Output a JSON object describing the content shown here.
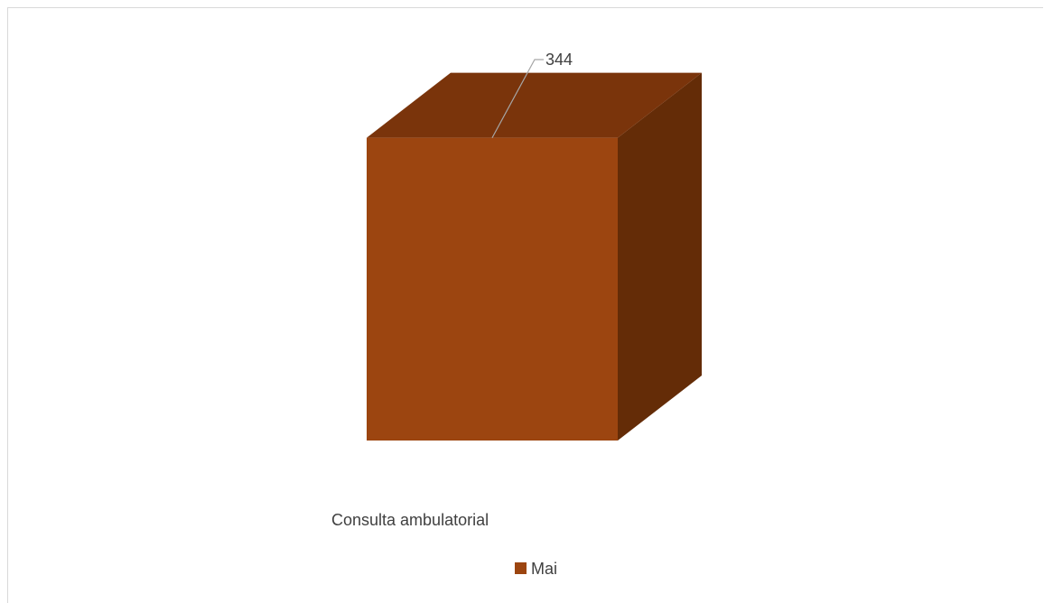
{
  "chart_data": {
    "type": "bar",
    "categories": [
      "Consulta ambulatorial"
    ],
    "series": [
      {
        "name": "Mai",
        "values": [
          344
        ]
      }
    ],
    "data_labels": [
      "344"
    ],
    "legend": {
      "position": "bottom",
      "entries": [
        "Mai"
      ]
    },
    "ylim": [
      0,
      400
    ],
    "grid": false,
    "three_d": true,
    "colors": {
      "front": "#9c4510",
      "top": "#7a340b",
      "side": "#642c07",
      "leader": "#a6a6a6",
      "frame": "#d9d9d9"
    }
  }
}
